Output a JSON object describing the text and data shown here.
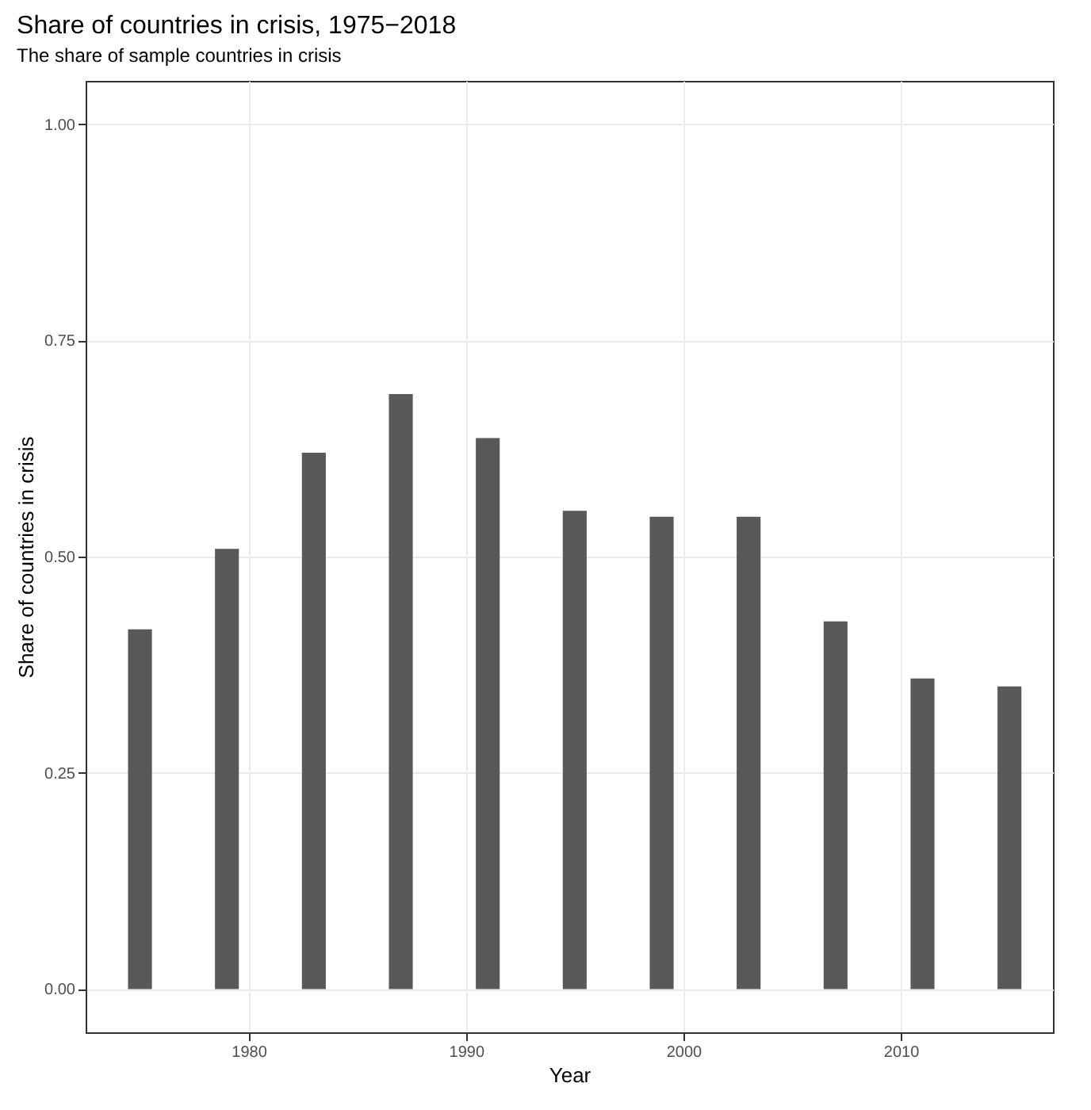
{
  "chart_data": {
    "type": "bar",
    "title": "Share of countries in crisis, 1975−2018",
    "subtitle": "The share of sample countries in crisis",
    "xlabel": "Year",
    "ylabel": "Share of countries in crisis",
    "x": [
      1975,
      1979,
      1983,
      1987,
      1991,
      1995,
      1999,
      2003,
      2007,
      2011,
      2015
    ],
    "values": [
      0.416,
      0.509,
      0.62,
      0.688,
      0.637,
      0.553,
      0.546,
      0.546,
      0.425,
      0.359,
      0.35
    ],
    "color": "#595959",
    "xlim": [
      1972.5,
      2017
    ],
    "xticks": [
      1980,
      1990,
      2000,
      2010
    ],
    "ylim": [
      -0.05,
      1.05
    ],
    "yticks": [
      {
        "value": 0,
        "label": "0.00"
      },
      {
        "value": 0.25,
        "label": "0.25"
      },
      {
        "value": 0.5,
        "label": "0.50"
      },
      {
        "value": 0.75,
        "label": "0.75"
      },
      {
        "value": 1,
        "label": "1.00"
      }
    ],
    "grid": true
  }
}
